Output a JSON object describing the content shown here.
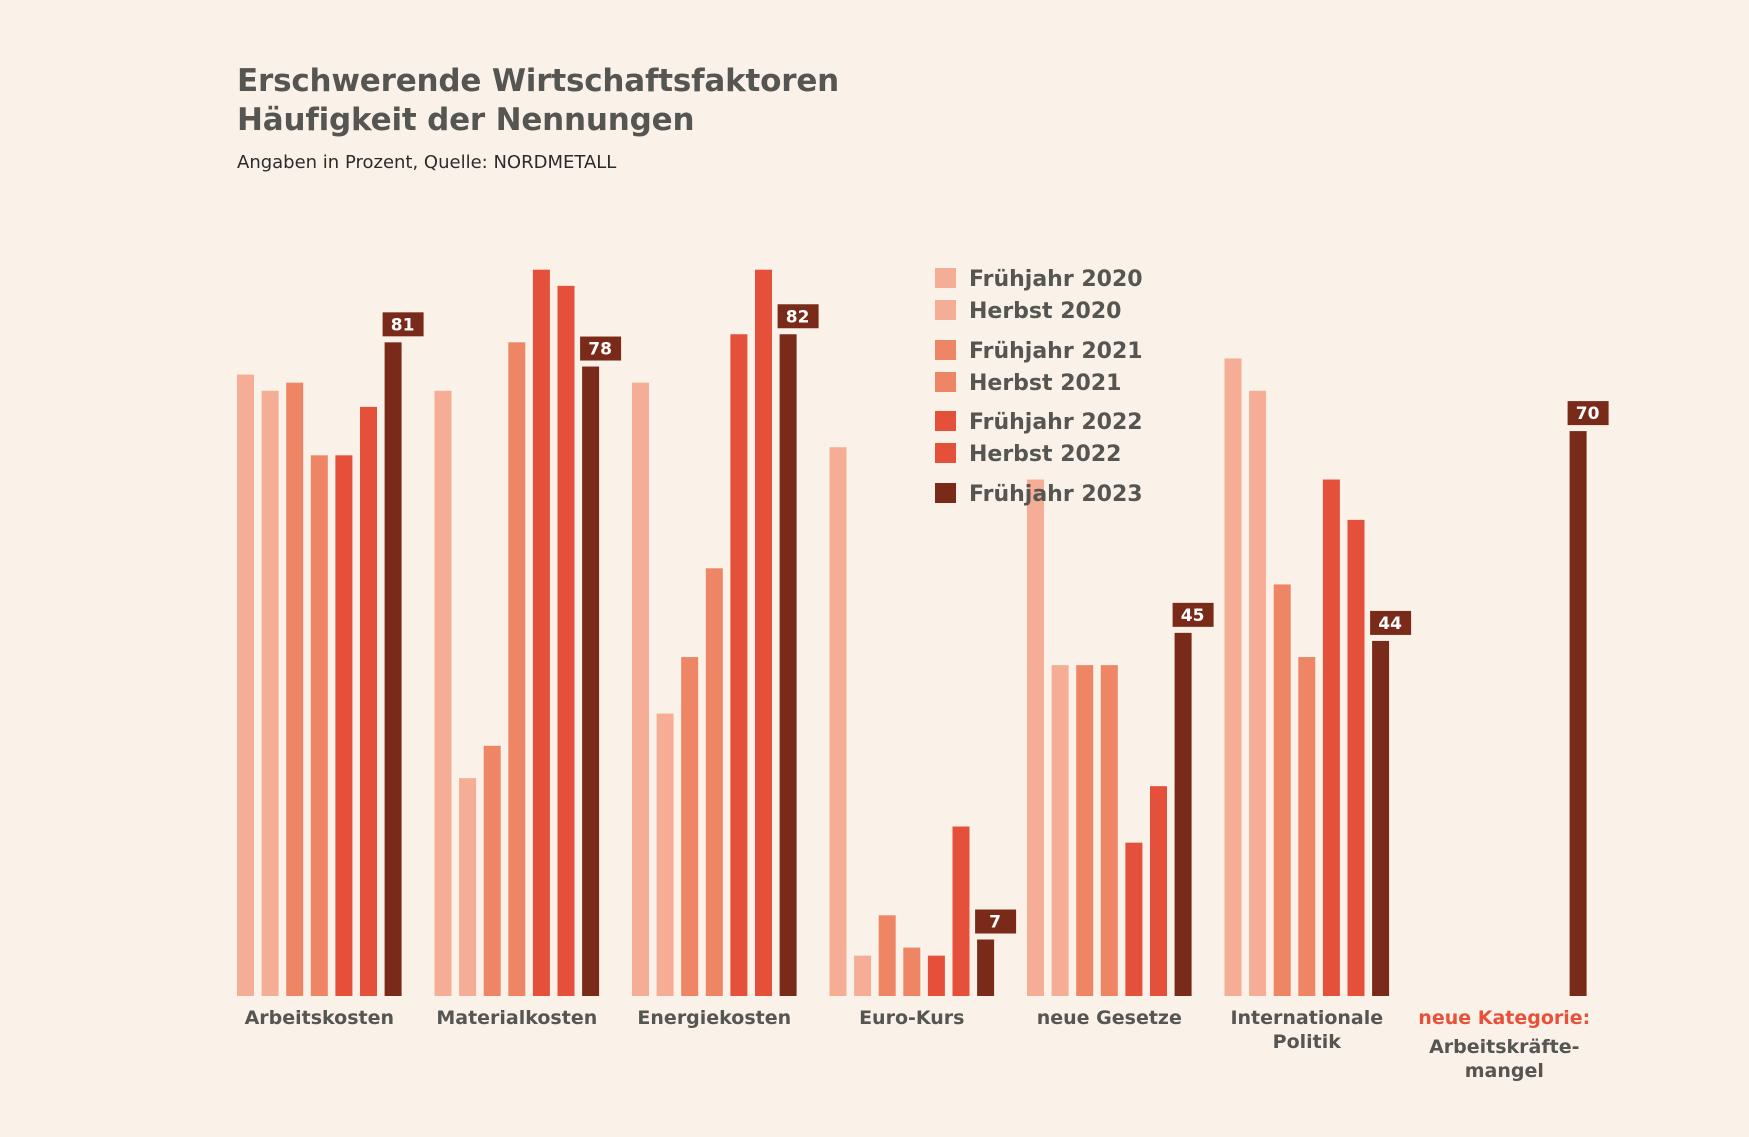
{
  "chart_data": {
    "type": "bar",
    "title": "Erschwerende Wirtschaftsfaktoren",
    "title_line2": "Häufigkeit der Nennungen",
    "subtitle": "Angaben in Prozent, Quelle: NORDMETALL",
    "ylim": [
      0,
      100
    ],
    "grid": false,
    "legend_position": "top-center",
    "categories": [
      {
        "lines": [
          "Arbeitskosten"
        ]
      },
      {
        "lines": [
          "Materialkosten"
        ]
      },
      {
        "lines": [
          "Energiekosten"
        ]
      },
      {
        "lines": [
          "Euro-Kurs"
        ]
      },
      {
        "lines": [
          "neue Gesetze"
        ]
      },
      {
        "lines": [
          "Internationale",
          "Politik"
        ]
      },
      {
        "prefix": "neue Kategorie:",
        "lines": [
          "Arbeitskräfte-",
          "mangel"
        ]
      }
    ],
    "series": [
      {
        "name": "Frühjahr 2020",
        "color": "#f5ae95",
        "values": [
          77,
          75,
          76,
          68,
          64,
          79,
          null
        ]
      },
      {
        "name": "Herbst 2020",
        "color": "#f5ae95",
        "values": [
          75,
          27,
          35,
          5,
          41,
          75,
          null
        ]
      },
      {
        "name": "Frühjahr 2021",
        "color": "#ee8565",
        "values": [
          76,
          31,
          42,
          10,
          41,
          51,
          null
        ]
      },
      {
        "name": "Herbst 2021",
        "color": "#ee8565",
        "values": [
          67,
          81,
          53,
          6,
          41,
          42,
          null
        ]
      },
      {
        "name": "Frühjahr 2022",
        "color": "#e5503a",
        "values": [
          67,
          90,
          82,
          5,
          19,
          64,
          null
        ]
      },
      {
        "name": "Herbst 2022",
        "color": "#e5503a",
        "values": [
          73,
          88,
          90,
          21,
          26,
          59,
          null
        ]
      },
      {
        "name": "Frühjahr 2023",
        "color": "#7a2a19",
        "values": [
          81,
          78,
          82,
          7,
          45,
          44,
          70
        ]
      }
    ],
    "value_labels": [
      "81",
      "78",
      "82",
      "7",
      "45",
      "44",
      "70"
    ]
  }
}
